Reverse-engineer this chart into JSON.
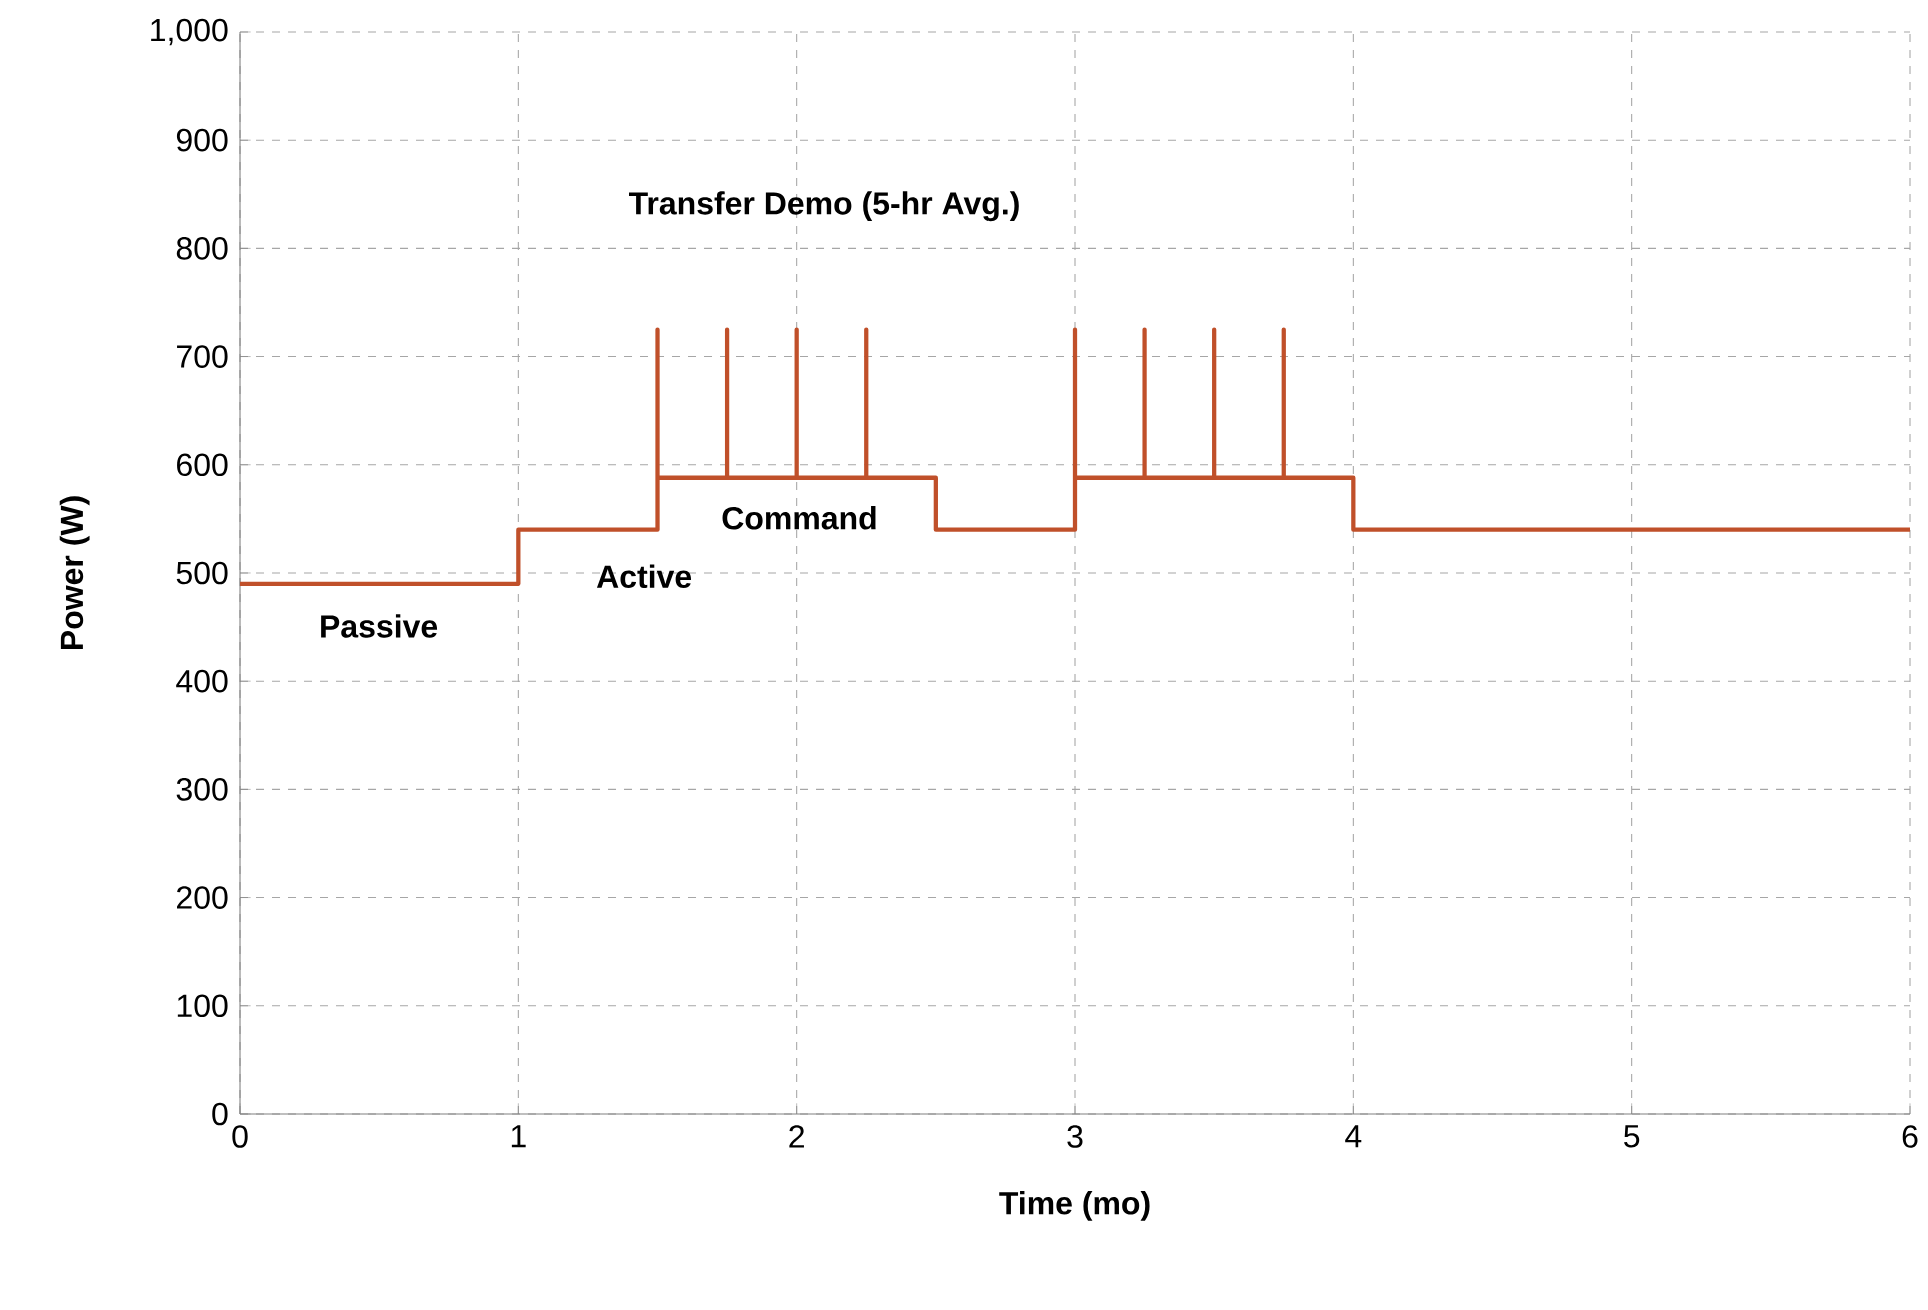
{
  "chart_data": {
    "type": "line",
    "xlabel": "Time (mo)",
    "ylabel": "Power (W)",
    "xlim": [
      0,
      6
    ],
    "ylim": [
      0,
      1000
    ],
    "xticks": [
      0,
      1,
      2,
      3,
      4,
      5,
      6
    ],
    "yticks": [
      0,
      100,
      200,
      300,
      400,
      500,
      600,
      700,
      800,
      900,
      {
        "value": 1000,
        "label": "1,000"
      }
    ],
    "grid": true,
    "line_style": "solid",
    "series": [
      {
        "color": "#c0502a",
        "x": [
          0,
          1,
          1,
          1.5,
          1.5,
          1.5,
          1.75,
          1.75,
          1.75,
          2,
          2,
          2,
          2.25,
          2.25,
          2.25,
          2.5,
          2.5,
          3,
          3,
          3,
          3.25,
          3.25,
          3.25,
          3.5,
          3.5,
          3.5,
          3.75,
          3.75,
          3.75,
          4,
          4,
          6
        ],
        "values": [
          490,
          490,
          540,
          540,
          725,
          588,
          588,
          725,
          588,
          588,
          725,
          588,
          588,
          725,
          588,
          588,
          540,
          540,
          725,
          588,
          588,
          725,
          588,
          588,
          725,
          588,
          588,
          725,
          588,
          588,
          540,
          540
        ]
      }
    ],
    "annotations": [
      "Passive",
      "Active",
      "Command",
      "Transfer Demo (5-hr Avg.)"
    ]
  }
}
